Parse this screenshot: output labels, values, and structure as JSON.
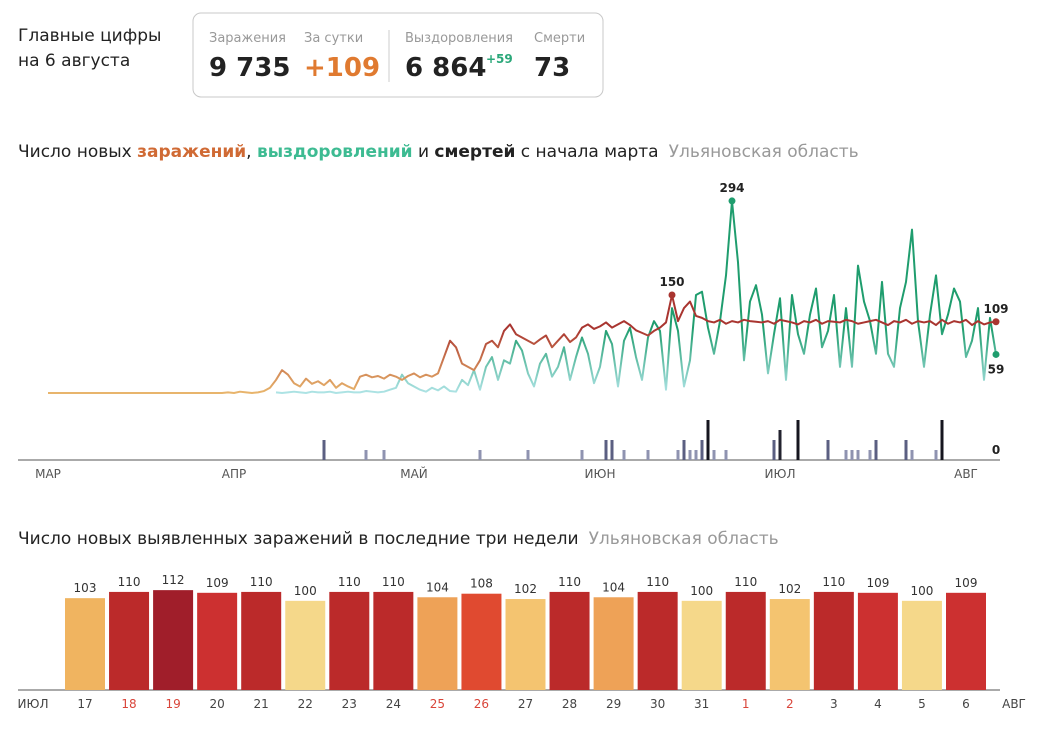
{
  "header": {
    "title_line1": "Главные цифры",
    "title_line2": "на 6 августа"
  },
  "stats": {
    "infections": {
      "label": "Заражения",
      "value": "9 735"
    },
    "daily": {
      "label": "За сутки",
      "value": "+109"
    },
    "recoveries": {
      "label": "Выздоровления",
      "value": "6 864",
      "delta": "+59"
    },
    "deaths": {
      "label": "Смерти",
      "value": "73"
    }
  },
  "chart_data": [
    {
      "type": "line",
      "title_parts": [
        "Число новых ",
        ", ",
        " и ",
        " с начала марта"
      ],
      "subtitle": "Ульяновская область",
      "categories": [
        "МАР",
        null,
        null,
        null,
        null,
        null,
        null,
        null,
        null,
        null,
        null,
        null,
        null,
        null,
        null,
        null,
        null,
        null,
        null,
        null,
        null,
        null,
        null,
        null,
        null,
        null,
        null,
        null,
        null,
        null,
        null,
        "АПР",
        null,
        null,
        null,
        null,
        null,
        null,
        null,
        null,
        null,
        null,
        null,
        null,
        null,
        null,
        null,
        null,
        null,
        null,
        null,
        null,
        null,
        null,
        null,
        null,
        null,
        null,
        null,
        null,
        null,
        "МАЙ",
        null,
        null,
        null,
        null,
        null,
        null,
        null,
        null,
        null,
        null,
        null,
        null,
        null,
        null,
        null,
        null,
        null,
        null,
        null,
        null,
        null,
        null,
        null,
        null,
        null,
        null,
        null,
        null,
        null,
        null,
        "ИЮН",
        null,
        null,
        null,
        null,
        null,
        null,
        null,
        null,
        null,
        null,
        null,
        null,
        null,
        null,
        null,
        null,
        null,
        null,
        null,
        null,
        null,
        null,
        null,
        null,
        null,
        null,
        null,
        null,
        null,
        "ИЮЛ",
        null,
        null,
        null,
        null,
        null,
        null,
        null,
        null,
        null,
        null,
        null,
        null,
        null,
        null,
        null,
        null,
        null,
        null,
        null,
        null,
        null,
        null,
        null,
        null,
        null,
        null,
        null,
        null,
        null,
        null,
        "АВГ",
        null,
        null,
        null,
        null,
        null
      ],
      "ylim": [
        0,
        300
      ],
      "y2lim": [
        0,
        4
      ],
      "series": [
        {
          "name": "заражений",
          "color": "#c4562a",
          "gradient": [
            "#e8b56c",
            "#a93530"
          ],
          "values": [
            0,
            0,
            0,
            0,
            0,
            0,
            0,
            0,
            0,
            0,
            0,
            0,
            0,
            0,
            0,
            0,
            0,
            0,
            0,
            0,
            0,
            0,
            0,
            0,
            0,
            0,
            0,
            0,
            0,
            0,
            1,
            0,
            2,
            1,
            0,
            1,
            3,
            8,
            20,
            35,
            28,
            15,
            10,
            22,
            14,
            18,
            12,
            20,
            8,
            15,
            10,
            6,
            25,
            28,
            24,
            26,
            22,
            28,
            25,
            20,
            26,
            30,
            24,
            28,
            25,
            30,
            55,
            80,
            70,
            45,
            40,
            35,
            50,
            75,
            80,
            70,
            95,
            105,
            90,
            85,
            80,
            75,
            82,
            88,
            70,
            80,
            90,
            78,
            85,
            100,
            105,
            98,
            102,
            108,
            100,
            105,
            110,
            104,
            96,
            92,
            88,
            95,
            100,
            108,
            150,
            110,
            130,
            140,
            118,
            115,
            110,
            108,
            112,
            106,
            110,
            108,
            112,
            110,
            109,
            108,
            110,
            106,
            112,
            110,
            108,
            105,
            110,
            108,
            112,
            106,
            110,
            109,
            108,
            112,
            110,
            106,
            108,
            110,
            112,
            108,
            104,
            110,
            108,
            112,
            106,
            110,
            108,
            110,
            104,
            112,
            106,
            110,
            108,
            112,
            104,
            110,
            105,
            108,
            109
          ]
        },
        {
          "name": "выздоровлений",
          "color": "#2bb08a",
          "gradient": [
            "#aee3e5",
            "#1f9d6e"
          ],
          "values": [
            null,
            null,
            null,
            null,
            null,
            null,
            null,
            null,
            null,
            null,
            null,
            null,
            null,
            null,
            null,
            null,
            null,
            null,
            null,
            null,
            null,
            null,
            null,
            null,
            null,
            null,
            null,
            null,
            null,
            null,
            null,
            null,
            null,
            null,
            null,
            null,
            null,
            null,
            1,
            0,
            1,
            2,
            1,
            0,
            2,
            1,
            1,
            2,
            0,
            1,
            2,
            1,
            1,
            3,
            2,
            1,
            2,
            5,
            8,
            28,
            15,
            10,
            5,
            2,
            8,
            4,
            10,
            3,
            2,
            20,
            12,
            35,
            5,
            40,
            55,
            20,
            50,
            45,
            80,
            65,
            30,
            10,
            45,
            60,
            25,
            40,
            70,
            20,
            55,
            85,
            60,
            15,
            40,
            95,
            75,
            10,
            80,
            100,
            55,
            20,
            85,
            110,
            95,
            5,
            130,
            95,
            10,
            50,
            150,
            155,
            100,
            60,
            110,
            180,
            294,
            200,
            50,
            140,
            165,
            120,
            30,
            90,
            145,
            20,
            150,
            90,
            60,
            120,
            160,
            70,
            95,
            150,
            40,
            130,
            40,
            195,
            140,
            110,
            60,
            170,
            60,
            40,
            130,
            170,
            250,
            110,
            40,
            120,
            180,
            90,
            120,
            160,
            140,
            55,
            80,
            130,
            20,
            115,
            59
          ]
        },
        {
          "name": "смертей",
          "color": "#222222",
          "axis": "y2",
          "level_colors": [
            "#8f93b0",
            "#5b5f82",
            "#23232f",
            "#15151f"
          ],
          "values": [
            0,
            0,
            0,
            0,
            0,
            0,
            0,
            0,
            0,
            0,
            0,
            0,
            0,
            0,
            0,
            0,
            0,
            0,
            0,
            0,
            0,
            0,
            0,
            0,
            0,
            0,
            0,
            0,
            0,
            0,
            0,
            0,
            0,
            0,
            0,
            0,
            0,
            0,
            0,
            0,
            0,
            0,
            0,
            0,
            0,
            0,
            2,
            0,
            0,
            0,
            0,
            0,
            0,
            1,
            0,
            0,
            1,
            0,
            0,
            0,
            0,
            0,
            0,
            0,
            0,
            0,
            0,
            0,
            0,
            0,
            0,
            0,
            1,
            0,
            0,
            0,
            0,
            0,
            0,
            0,
            1,
            0,
            0,
            0,
            0,
            0,
            0,
            0,
            0,
            1,
            0,
            0,
            0,
            2,
            2,
            0,
            1,
            0,
            0,
            0,
            1,
            0,
            0,
            0,
            0,
            1,
            2,
            1,
            1,
            2,
            4,
            1,
            0,
            1,
            0,
            0,
            0,
            0,
            0,
            0,
            0,
            2,
            3,
            0,
            0,
            4,
            0,
            0,
            0,
            0,
            2,
            0,
            0,
            1,
            1,
            1,
            0,
            1,
            2,
            0,
            0,
            0,
            0,
            2,
            1,
            0,
            0,
            0,
            1,
            4,
            0,
            0,
            0,
            0,
            0,
            0,
            0,
            0,
            0
          ]
        }
      ]
    },
    {
      "type": "bar",
      "title": "Число новых выявленных заражений в последние три недели",
      "subtitle": "Ульяновская область",
      "x_start_label": "ИЮЛ",
      "x_end_label": "АВГ",
      "categories": [
        "17",
        "18",
        "19",
        "20",
        "21",
        "22",
        "23",
        "24",
        "25",
        "26",
        "27",
        "28",
        "29",
        "30",
        "31",
        "1",
        "2",
        "3",
        "4",
        "5",
        "6"
      ],
      "values": [
        103,
        110,
        112,
        109,
        110,
        100,
        110,
        110,
        104,
        108,
        102,
        110,
        104,
        110,
        100,
        110,
        102,
        110,
        109,
        100,
        109
      ],
      "colors": [
        "#f0b460",
        "#bb2a2a",
        "#a01e2a",
        "#cc3030",
        "#bb2a2a",
        "#f5d88a",
        "#bb2a2a",
        "#bb2a2a",
        "#eea257",
        "#e04a30",
        "#f4c470",
        "#bb2a2a",
        "#eea257",
        "#bb2a2a",
        "#f5d88a",
        "#bb2a2a",
        "#f4c470",
        "#bb2a2a",
        "#cc3030",
        "#f5d88a",
        "#cc3030"
      ],
      "label_colors": [
        "#444444",
        "#d9453a",
        "#d9453a",
        "#444444",
        "#444444",
        "#444444",
        "#444444",
        "#444444",
        "#d9453a",
        "#d9453a",
        "#444444",
        "#444444",
        "#444444",
        "#444444",
        "#444444",
        "#d9453a",
        "#d9453a",
        "#444444",
        "#444444",
        "#444444",
        "#444444"
      ],
      "ylim": [
        0,
        120
      ]
    }
  ]
}
